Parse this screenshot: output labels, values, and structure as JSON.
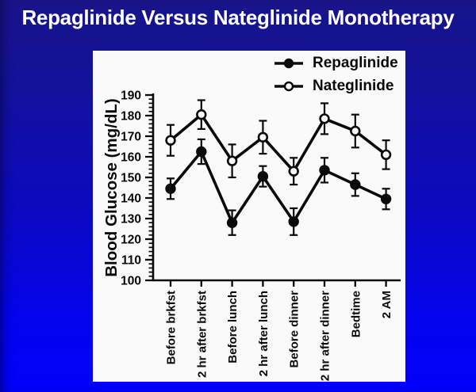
{
  "slide": {
    "title": "Repaglinide Versus Nateglinide Monotherapy",
    "background_top_color": "#17148a",
    "background_bottom_color": "#0101fb",
    "title_color": "#ffffff",
    "panel_color": "#fbfafa"
  },
  "chart_data": {
    "type": "line",
    "title": "",
    "xlabel": "",
    "ylabel": "Blood Glucose (mg/dL)",
    "ylim": [
      100,
      190
    ],
    "yticks": [
      100,
      110,
      120,
      130,
      140,
      150,
      160,
      170,
      180,
      190
    ],
    "ytick_step": 10,
    "ytick_minor_step": 2,
    "grid": false,
    "legend_position": "top-right",
    "ink_color": "#0a0a0a",
    "categories": [
      "Before brkfst",
      "2 hr after brkfst",
      "Before lunch",
      "2 hr after lunch",
      "Before dinner",
      "2 hr after dinner",
      "Bedtime",
      "2 AM"
    ],
    "series": [
      {
        "name": "Repaglinide",
        "marker": "filled-circle",
        "color": "#0a0a0a",
        "values": [
          144.5,
          162.5,
          128,
          150.5,
          128.5,
          153.5,
          146.5,
          139.5
        ],
        "errors": [
          5,
          6,
          6,
          5,
          6.5,
          6,
          5.5,
          5
        ]
      },
      {
        "name": "Nateglinide",
        "marker": "open-circle",
        "color": "#0a0a0a",
        "values": [
          168,
          180.5,
          158,
          169.5,
          153,
          178.5,
          172.5,
          161
        ],
        "errors": [
          7.5,
          7,
          8,
          8,
          6.5,
          7.5,
          8,
          7
        ]
      }
    ]
  }
}
